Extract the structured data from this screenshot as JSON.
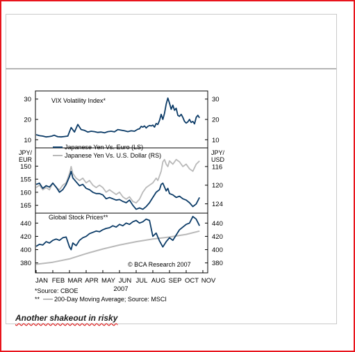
{
  "caption": "Another shakeout in risky",
  "colors": {
    "navy": "#0a3a66",
    "gray": "#b9b9b9",
    "frame": "#e8141c"
  },
  "chart_data": [
    {
      "type": "line",
      "title": "VIX Volatility Index*",
      "ylim": [
        6,
        34
      ],
      "yticks_left": [
        10,
        20,
        30
      ],
      "yticks_right": [
        10,
        20,
        30
      ],
      "series": [
        {
          "color": "#0a3a66",
          "x": [
            0,
            0.2,
            0.4,
            0.6,
            0.8,
            0.95,
            1.0,
            1.1,
            1.2,
            1.3,
            1.5,
            1.7,
            1.9,
            2.1,
            2.3,
            2.5,
            2.7,
            2.9,
            3.1,
            3.3,
            3.5,
            3.7,
            3.9,
            4.1,
            4.3,
            4.5,
            4.7,
            4.9,
            5.1,
            5.3,
            5.5,
            5.7,
            5.9,
            6.1,
            6.2,
            6.3,
            6.4,
            6.5,
            6.6,
            6.7,
            6.8,
            6.9,
            7.0,
            7.1,
            7.2,
            7.3,
            7.4,
            7.5,
            7.6,
            7.7,
            7.8,
            7.9,
            8.0,
            8.1,
            8.2,
            8.3,
            8.4,
            8.5,
            8.6,
            8.7,
            8.8,
            8.9,
            9.0,
            9.1,
            9.2,
            9.3,
            9.4,
            9.5,
            9.6,
            9.7,
            9.8
          ],
          "y": [
            12.5,
            12.0,
            11.8,
            11.4,
            11.6,
            11.8,
            12.0,
            12.2,
            11.8,
            11.5,
            11.4,
            11.6,
            11.8,
            16.0,
            13.8,
            17.5,
            15.0,
            14.6,
            13.8,
            14.2,
            14.0,
            13.6,
            13.8,
            13.4,
            14.0,
            14.2,
            13.9,
            15.0,
            14.7,
            14.4,
            14.0,
            14.4,
            14.2,
            15.2,
            15.4,
            16.6,
            16.2,
            16.8,
            15.8,
            16.6,
            17.0,
            16.8,
            17.2,
            16.2,
            18.0,
            17.5,
            19.5,
            22.5,
            20.0,
            23.0,
            27.5,
            30.5,
            28.0,
            25.0,
            27.0,
            24.5,
            25.5,
            22.0,
            21.5,
            22.5,
            21.0,
            19.0,
            18.2,
            18.8,
            20.0,
            18.5,
            19.0,
            17.8,
            21.0,
            22.0,
            20.8
          ]
        }
      ]
    },
    {
      "type": "line",
      "ylabel_left": "JPY/ EUR",
      "ylabel_right": "JPY/ USD",
      "ylim_left": [
        143,
        168
      ],
      "ylim_right": [
        112,
        126
      ],
      "yticks_left": [
        150,
        155,
        160,
        165
      ],
      "yticks_right": [
        116,
        120,
        124
      ],
      "inverted_axis": true,
      "legend": [
        {
          "name": "Japanese Yen Vs. Euro (LS)",
          "color": "#0a3a66"
        },
        {
          "name": "Japanese Yen Vs. U.S. Dollar (RS)",
          "color": "#b9b9b9"
        }
      ],
      "series": [
        {
          "name": "Japanese Yen Vs. Euro (LS)",
          "color": "#0a3a66",
          "x": [
            0,
            0.2,
            0.4,
            0.6,
            0.8,
            1.0,
            1.2,
            1.4,
            1.6,
            1.8,
            2.0,
            2.1,
            2.2,
            2.4,
            2.6,
            2.8,
            3.0,
            3.2,
            3.4,
            3.6,
            3.8,
            4.0,
            4.2,
            4.4,
            4.6,
            4.8,
            5.0,
            5.2,
            5.4,
            5.6,
            5.8,
            6.0,
            6.2,
            6.4,
            6.6,
            6.8,
            7.0,
            7.2,
            7.4,
            7.5,
            7.6,
            7.7,
            7.8,
            7.9,
            8.0,
            8.2,
            8.4,
            8.6,
            8.8,
            9.0,
            9.2,
            9.4,
            9.6,
            9.8
          ],
          "y": [
            157.0,
            156.5,
            158.5,
            157.5,
            158.0,
            156.5,
            158.0,
            160.0,
            159.0,
            157.0,
            154.0,
            152.0,
            154.5,
            156.0,
            157.5,
            157.0,
            158.5,
            159.0,
            160.0,
            160.5,
            160.5,
            161.0,
            162.5,
            162.0,
            162.5,
            163.0,
            162.8,
            163.5,
            164.0,
            163.0,
            165.0,
            166.5,
            166.0,
            166.5,
            165.5,
            164.0,
            162.0,
            160.0,
            159.0,
            157.0,
            156.5,
            158.0,
            159.5,
            158.5,
            160.5,
            161.0,
            162.0,
            161.5,
            162.5,
            163.0,
            164.0,
            165.5,
            164.5,
            162.0
          ]
        },
        {
          "name": "Japanese Yen Vs. U.S. Dollar (RS)",
          "color": "#b9b9b9",
          "x": [
            0,
            0.2,
            0.4,
            0.6,
            0.8,
            1.0,
            1.2,
            1.4,
            1.6,
            1.8,
            2.0,
            2.1,
            2.2,
            2.4,
            2.6,
            2.8,
            3.0,
            3.2,
            3.4,
            3.6,
            3.8,
            4.0,
            4.2,
            4.4,
            4.6,
            4.8,
            5.0,
            5.2,
            5.4,
            5.6,
            5.8,
            6.0,
            6.2,
            6.4,
            6.6,
            6.8,
            7.0,
            7.2,
            7.3,
            7.4,
            7.5,
            7.6,
            7.7,
            7.8,
            7.9,
            8.0,
            8.2,
            8.4,
            8.6,
            8.8,
            9.0,
            9.2,
            9.4,
            9.6,
            9.8
          ],
          "y": [
            120.5,
            120.0,
            121.0,
            120.5,
            121.0,
            119.5,
            120.5,
            121.0,
            120.0,
            119.5,
            117.5,
            116.0,
            117.5,
            118.5,
            119.0,
            118.5,
            119.5,
            119.0,
            120.0,
            120.5,
            120.0,
            120.5,
            121.5,
            121.0,
            121.5,
            122.0,
            121.5,
            122.5,
            123.0,
            122.5,
            123.5,
            123.8,
            123.0,
            121.5,
            120.5,
            120.0,
            119.5,
            118.5,
            119.0,
            118.0,
            117.0,
            115.0,
            114.5,
            115.5,
            116.0,
            114.8,
            115.5,
            114.5,
            115.0,
            116.0,
            115.5,
            116.5,
            117.0,
            115.5,
            114.8
          ]
        }
      ]
    },
    {
      "type": "line",
      "title": "Global Stock Prices**",
      "ylim": [
        365,
        455
      ],
      "yticks_left": [
        380,
        400,
        420,
        440
      ],
      "yticks_right": [
        380,
        400,
        420,
        440
      ],
      "annotation": "© BCA Research 2007",
      "series": [
        {
          "color": "#0a3a66",
          "x": [
            0,
            0.2,
            0.4,
            0.6,
            0.8,
            1.0,
            1.2,
            1.4,
            1.6,
            1.8,
            2.0,
            2.1,
            2.2,
            2.4,
            2.6,
            2.8,
            3.0,
            3.2,
            3.4,
            3.6,
            3.8,
            4.0,
            4.2,
            4.4,
            4.6,
            4.8,
            5.0,
            5.2,
            5.4,
            5.6,
            5.8,
            6.0,
            6.2,
            6.4,
            6.6,
            6.8,
            7.0,
            7.2,
            7.4,
            7.6,
            7.8,
            8.0,
            8.2,
            8.4,
            8.6,
            8.8,
            9.0,
            9.2,
            9.4,
            9.6,
            9.8
          ],
          "y": [
            405,
            408,
            407,
            412,
            410,
            414,
            416,
            414,
            418,
            419,
            404,
            400,
            410,
            406,
            414,
            418,
            420,
            424,
            426,
            428,
            427,
            430,
            432,
            433,
            436,
            434,
            438,
            436,
            440,
            438,
            442,
            444,
            440,
            442,
            446,
            444,
            420,
            425,
            413,
            404,
            412,
            418,
            414,
            422,
            430,
            434,
            438,
            440,
            450,
            446,
            436
          ]
        },
        {
          "name": "200-Day Moving Average",
          "color": "#b9b9b9",
          "x": [
            0,
            1,
            2,
            3,
            4,
            5,
            6,
            7,
            8,
            9,
            9.8
          ],
          "y": [
            378,
            381,
            386,
            394,
            401,
            407,
            412,
            416,
            419,
            423,
            428
          ]
        }
      ]
    }
  ],
  "x_axis": {
    "months": [
      "JAN",
      "FEB",
      "MAR",
      "APR",
      "MAY",
      "JUN",
      "JUL",
      "AUG",
      "SEP",
      "OCT",
      "NOV"
    ],
    "year": "2007"
  },
  "footnotes": {
    "source_vix": "*Source: CBOE",
    "marker": "**",
    "ma_note": "200-Day Moving Average; Source: MSCI"
  }
}
